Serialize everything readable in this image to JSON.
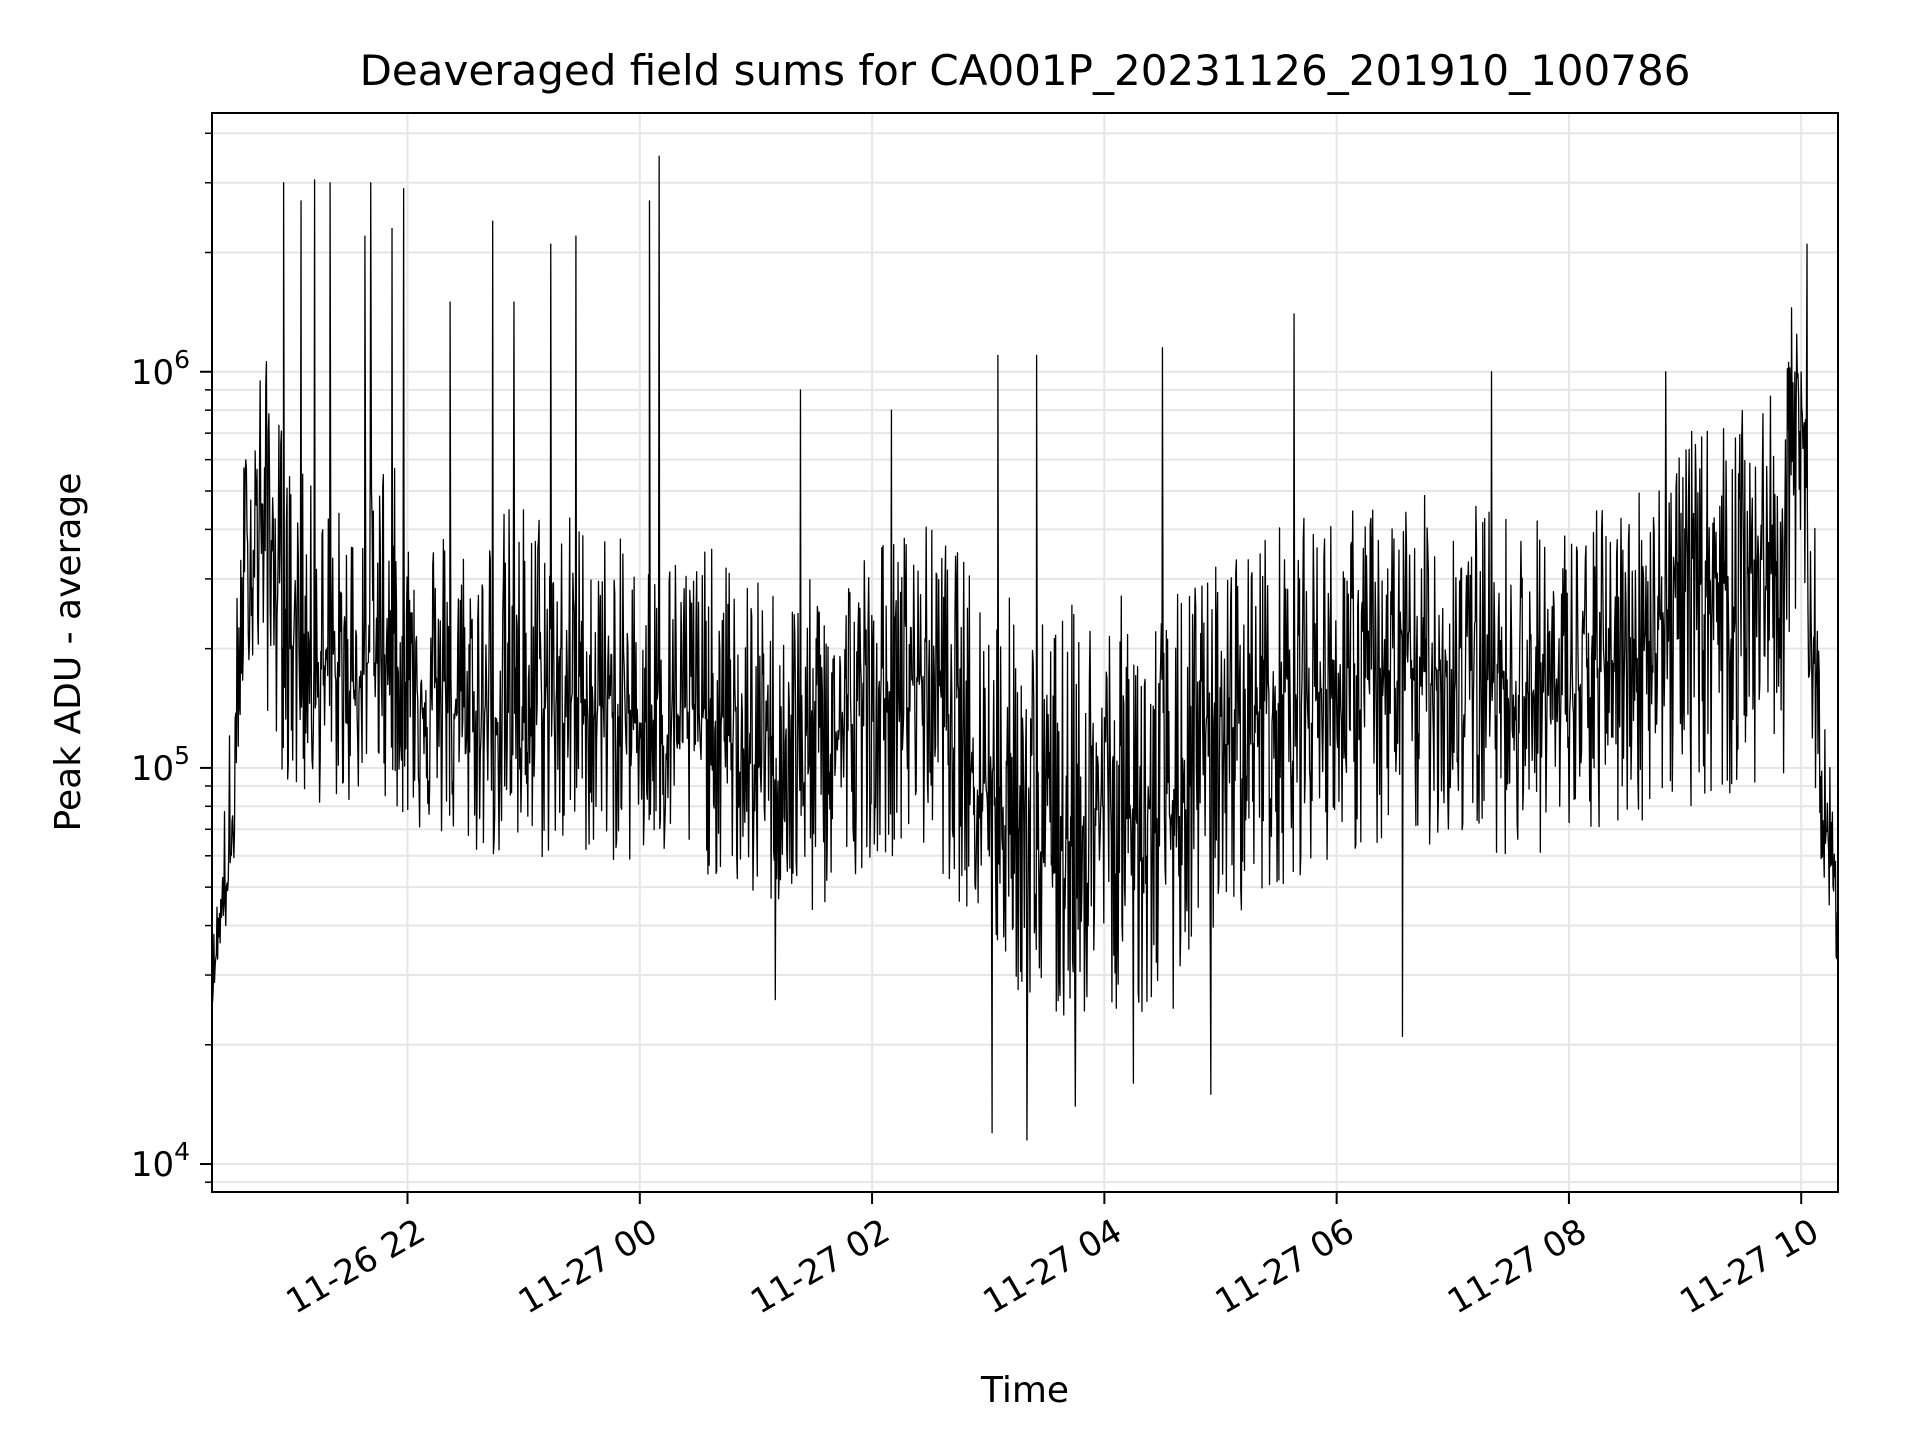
{
  "chart_data": {
    "type": "line",
    "title": "Deaveraged field sums for CA001P_20231126_201910_100786",
    "xlabel": "Time",
    "ylabel": "Peak ADU - average",
    "yscale": "log",
    "ylim": [
      8500,
      4500000
    ],
    "xlim": [
      "2023-11-26 20:19",
      "2023-11-27 10:19"
    ],
    "grid": true,
    "line_color": "#000000",
    "grid_color": "#e6e6e6",
    "x_ticks": [
      {
        "value": "2023-11-26 22:00",
        "label": "11-26 22"
      },
      {
        "value": "2023-11-27 00:00",
        "label": "11-27 00"
      },
      {
        "value": "2023-11-27 02:00",
        "label": "11-27 02"
      },
      {
        "value": "2023-11-27 04:00",
        "label": "11-27 04"
      },
      {
        "value": "2023-11-27 06:00",
        "label": "11-27 06"
      },
      {
        "value": "2023-11-27 08:00",
        "label": "11-27 08"
      },
      {
        "value": "2023-11-27 10:00",
        "label": "11-27 10"
      }
    ],
    "y_ticks": [
      {
        "value": 10000,
        "base": "10",
        "exp": "4"
      },
      {
        "value": 100000,
        "base": "10",
        "exp": "5"
      },
      {
        "value": 1000000,
        "base": "10",
        "exp": "6"
      }
    ],
    "series": [
      {
        "name": "",
        "x": [
          "2023-11-26 20:19",
          "2023-11-26 20:23",
          "2023-11-26 20:29",
          "2023-11-26 20:36",
          "2023-11-26 20:45",
          "2023-11-26 21:00",
          "2023-11-26 21:15",
          "2023-11-26 21:30",
          "2023-11-26 21:45",
          "2023-11-26 22:00",
          "2023-11-26 22:30",
          "2023-11-26 23:00",
          "2023-11-26 23:30",
          "2023-11-27 00:00",
          "2023-11-27 00:30",
          "2023-11-27 01:00",
          "2023-11-27 01:30",
          "2023-11-27 02:00",
          "2023-11-27 02:30",
          "2023-11-27 03:00",
          "2023-11-27 03:30",
          "2023-11-27 04:00",
          "2023-11-27 04:30",
          "2023-11-27 05:00",
          "2023-11-27 05:30",
          "2023-11-27 06:00",
          "2023-11-27 06:30",
          "2023-11-27 07:00",
          "2023-11-27 07:30",
          "2023-11-27 08:00",
          "2023-11-27 08:30",
          "2023-11-27 09:00",
          "2023-11-27 09:30",
          "2023-11-27 09:50",
          "2023-11-27 10:00",
          "2023-11-27 10:05",
          "2023-11-27 10:10",
          "2023-11-27 10:19"
        ],
        "y": [
          28000,
          40000,
          60000,
          300000,
          450000,
          220000,
          180000,
          160000,
          200000,
          170000,
          130000,
          140000,
          150000,
          130000,
          140000,
          100000,
          110000,
          140000,
          180000,
          90000,
          60000,
          80000,
          70000,
          120000,
          150000,
          160000,
          170000,
          180000,
          160000,
          150000,
          200000,
          280000,
          320000,
          350000,
          900000,
          250000,
          90000,
          40000
        ],
        "upper": [
          35000,
          60000,
          150000,
          700000,
          1200000,
          600000,
          500000,
          450000,
          700000,
          500000,
          400000,
          500000,
          450000,
          350000,
          380000,
          300000,
          300000,
          380000,
          420000,
          300000,
          250000,
          280000,
          260000,
          350000,
          420000,
          450000,
          480000,
          500000,
          450000,
          420000,
          500000,
          700000,
          800000,
          900000,
          1500000,
          700000,
          200000,
          60000
        ],
        "lower": [
          25000,
          35000,
          40000,
          200000,
          150000,
          80000,
          80000,
          80000,
          90000,
          70000,
          60000,
          55000,
          60000,
          55000,
          55000,
          45000,
          40000,
          60000,
          60000,
          35000,
          20000,
          25000,
          22000,
          40000,
          50000,
          60000,
          60000,
          65000,
          60000,
          60000,
          70000,
          80000,
          80000,
          90000,
          200000,
          120000,
          60000,
          30000
        ],
        "peaks": [
          {
            "x": "2023-11-26 20:56",
            "y": 3000000
          },
          {
            "x": "2023-11-26 21:05",
            "y": 2700000
          },
          {
            "x": "2023-11-26 21:12",
            "y": 3050000
          },
          {
            "x": "2023-11-26 21:20",
            "y": 3000000
          },
          {
            "x": "2023-11-26 21:38",
            "y": 2200000
          },
          {
            "x": "2023-11-26 21:41",
            "y": 3000000
          },
          {
            "x": "2023-11-26 21:52",
            "y": 2300000
          },
          {
            "x": "2023-11-26 21:58",
            "y": 2900000
          },
          {
            "x": "2023-11-26 22:22",
            "y": 1500000
          },
          {
            "x": "2023-11-26 22:44",
            "y": 2400000
          },
          {
            "x": "2023-11-26 22:55",
            "y": 1500000
          },
          {
            "x": "2023-11-26 23:14",
            "y": 2100000
          },
          {
            "x": "2023-11-26 23:27",
            "y": 2200000
          },
          {
            "x": "2023-11-27 00:05",
            "y": 2700000
          },
          {
            "x": "2023-11-27 00:10",
            "y": 3500000
          },
          {
            "x": "2023-11-27 01:23",
            "y": 900000
          },
          {
            "x": "2023-11-27 02:10",
            "y": 800000
          },
          {
            "x": "2023-11-27 03:05",
            "y": 1100000
          },
          {
            "x": "2023-11-27 03:25",
            "y": 1100000
          },
          {
            "x": "2023-11-27 04:30",
            "y": 1150000
          },
          {
            "x": "2023-11-27 05:38",
            "y": 1400000
          },
          {
            "x": "2023-11-27 07:20",
            "y": 1000000
          },
          {
            "x": "2023-11-27 08:50",
            "y": 1000000
          },
          {
            "x": "2023-11-27 09:55",
            "y": 1450000
          },
          {
            "x": "2023-11-27 10:03",
            "y": 2100000
          }
        ],
        "dips": [
          {
            "x": "2023-11-27 01:10",
            "y": 26000
          },
          {
            "x": "2023-11-27 03:02",
            "y": 12000
          },
          {
            "x": "2023-11-27 03:20",
            "y": 11500
          },
          {
            "x": "2023-11-27 03:45",
            "y": 14000
          },
          {
            "x": "2023-11-27 04:15",
            "y": 16000
          },
          {
            "x": "2023-11-27 04:55",
            "y": 15000
          },
          {
            "x": "2023-11-27 06:34",
            "y": 21000
          }
        ]
      }
    ]
  }
}
